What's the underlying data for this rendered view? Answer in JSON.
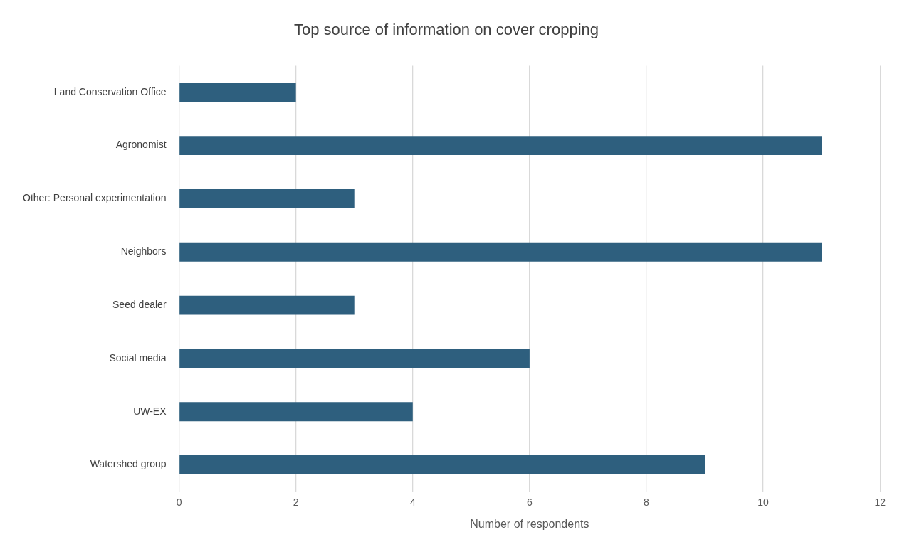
{
  "chart_data": {
    "type": "bar",
    "orientation": "horizontal",
    "title": "Top source of information on cover cropping",
    "xlabel": "Number of respondents",
    "categories": [
      "Land Conservation Office",
      "Agronomist",
      "Other: Personal experimentation",
      "Neighbors",
      "Seed dealer",
      "Social media",
      "UW-EX",
      "Watershed group"
    ],
    "values": [
      2,
      11,
      3,
      11,
      3,
      6,
      4,
      9
    ],
    "color": "#2e5f7e",
    "xlim": [
      0,
      12
    ],
    "xticks": [
      0,
      2,
      4,
      6,
      8,
      10,
      12
    ],
    "grid": "x",
    "legend": false
  }
}
